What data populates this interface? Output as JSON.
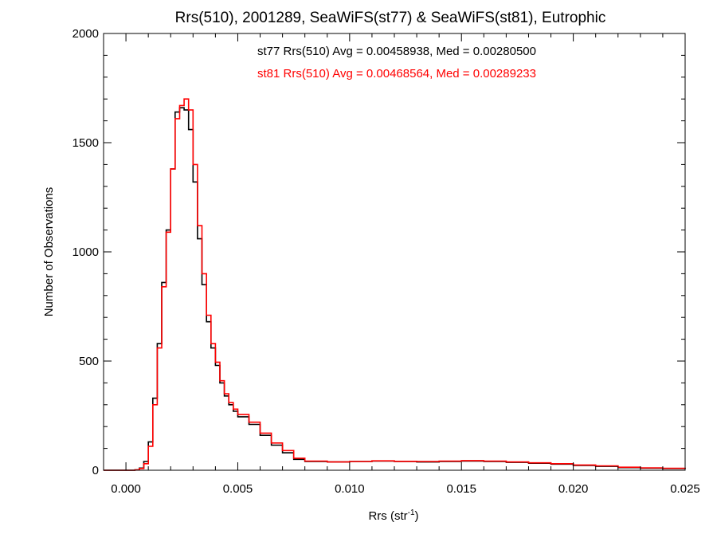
{
  "chart_data": {
    "type": "histogram",
    "title": "Rrs(510), 2001289, SeaWiFS(st77) & SeaWiFS(st81), Eutrophic",
    "xlabel_main": "Rrs (str",
    "xlabel_sup": "-1",
    "xlabel_close": ")",
    "ylabel": "Number of Observations",
    "xlim": [
      -0.001,
      0.025
    ],
    "ylim": [
      0,
      2000
    ],
    "xticks": [
      0.0,
      0.005,
      0.01,
      0.015,
      0.02,
      0.025
    ],
    "xtick_labels": [
      "0.000",
      "0.005",
      "0.010",
      "0.015",
      "0.020",
      "0.025"
    ],
    "yticks": [
      0,
      500,
      1000,
      1500,
      2000
    ],
    "ytick_labels": [
      "0",
      "500",
      "1000",
      "1500",
      "2000"
    ],
    "grid": false,
    "annotations": [
      {
        "text": "st77 Rrs(510) Avg = 0.00458938, Med = 0.00280500",
        "color": "#000000"
      },
      {
        "text": "st81 Rrs(510) Avg = 0.00468564, Med = 0.00289233",
        "color": "#ff0000"
      }
    ],
    "series": [
      {
        "color": "#000000",
        "points": [
          [
            -0.001,
            0
          ],
          [
            0.0,
            0
          ],
          [
            0.0004,
            2
          ],
          [
            0.0006,
            10
          ],
          [
            0.0008,
            40
          ],
          [
            0.001,
            130
          ],
          [
            0.0012,
            330
          ],
          [
            0.0014,
            580
          ],
          [
            0.0016,
            860
          ],
          [
            0.0018,
            1100
          ],
          [
            0.002,
            1380
          ],
          [
            0.0022,
            1640
          ],
          [
            0.0024,
            1660
          ],
          [
            0.0026,
            1650
          ],
          [
            0.0028,
            1560
          ],
          [
            0.003,
            1320
          ],
          [
            0.0032,
            1060
          ],
          [
            0.0034,
            850
          ],
          [
            0.0036,
            680
          ],
          [
            0.0038,
            560
          ],
          [
            0.004,
            480
          ],
          [
            0.0042,
            400
          ],
          [
            0.0044,
            340
          ],
          [
            0.0046,
            300
          ],
          [
            0.0048,
            270
          ],
          [
            0.005,
            245
          ],
          [
            0.0055,
            210
          ],
          [
            0.006,
            160
          ],
          [
            0.0065,
            115
          ],
          [
            0.007,
            80
          ],
          [
            0.0075,
            50
          ],
          [
            0.008,
            40
          ],
          [
            0.009,
            38
          ],
          [
            0.01,
            40
          ],
          [
            0.011,
            42
          ],
          [
            0.012,
            40
          ],
          [
            0.013,
            38
          ],
          [
            0.014,
            40
          ],
          [
            0.015,
            42
          ],
          [
            0.016,
            40
          ],
          [
            0.017,
            36
          ],
          [
            0.018,
            32
          ],
          [
            0.019,
            28
          ],
          [
            0.02,
            22
          ],
          [
            0.021,
            18
          ],
          [
            0.022,
            12
          ],
          [
            0.023,
            10
          ],
          [
            0.024,
            8
          ],
          [
            0.025,
            6
          ]
        ]
      },
      {
        "color": "#ff0000",
        "points": [
          [
            -0.001,
            0
          ],
          [
            0.0,
            0
          ],
          [
            0.0004,
            2
          ],
          [
            0.0006,
            8
          ],
          [
            0.0008,
            30
          ],
          [
            0.001,
            110
          ],
          [
            0.0012,
            300
          ],
          [
            0.0014,
            560
          ],
          [
            0.0016,
            840
          ],
          [
            0.0018,
            1090
          ],
          [
            0.002,
            1380
          ],
          [
            0.0022,
            1610
          ],
          [
            0.0024,
            1670
          ],
          [
            0.0026,
            1700
          ],
          [
            0.0028,
            1650
          ],
          [
            0.003,
            1400
          ],
          [
            0.0032,
            1120
          ],
          [
            0.0034,
            900
          ],
          [
            0.0036,
            710
          ],
          [
            0.0038,
            580
          ],
          [
            0.004,
            495
          ],
          [
            0.0042,
            410
          ],
          [
            0.0044,
            350
          ],
          [
            0.0046,
            310
          ],
          [
            0.0048,
            280
          ],
          [
            0.005,
            255
          ],
          [
            0.0055,
            220
          ],
          [
            0.006,
            170
          ],
          [
            0.0065,
            125
          ],
          [
            0.007,
            90
          ],
          [
            0.0075,
            55
          ],
          [
            0.008,
            42
          ],
          [
            0.009,
            38
          ],
          [
            0.01,
            40
          ],
          [
            0.011,
            43
          ],
          [
            0.012,
            41
          ],
          [
            0.013,
            40
          ],
          [
            0.014,
            42
          ],
          [
            0.015,
            44
          ],
          [
            0.016,
            42
          ],
          [
            0.017,
            38
          ],
          [
            0.018,
            34
          ],
          [
            0.019,
            30
          ],
          [
            0.02,
            24
          ],
          [
            0.021,
            20
          ],
          [
            0.022,
            14
          ],
          [
            0.023,
            11
          ],
          [
            0.024,
            9
          ],
          [
            0.025,
            7
          ]
        ]
      }
    ]
  }
}
